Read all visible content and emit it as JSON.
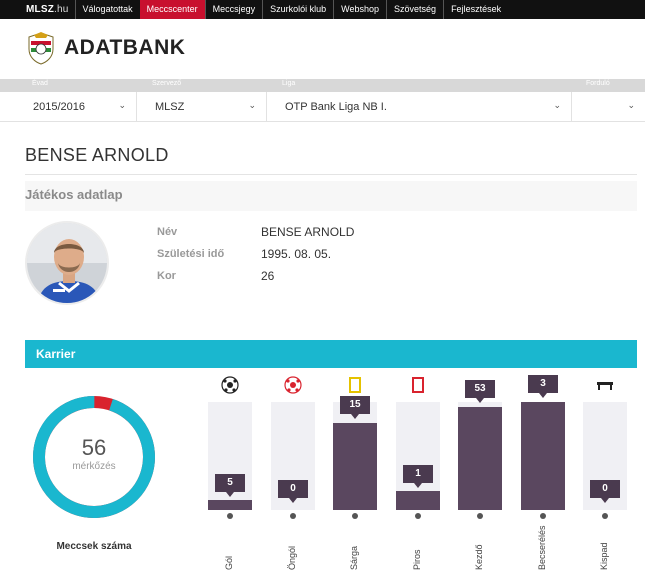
{
  "nav": {
    "logo": "MLSZ",
    "logo_sub": ".hu",
    "items": [
      "Válogatottak",
      "Meccscenter",
      "Meccsjegy",
      "Szurkolói klub",
      "Webshop",
      "Szövetség",
      "Fejlesztések"
    ],
    "active_index": 1
  },
  "brand": {
    "title": "ADATBANK",
    "crest_icon": "mlsz-crest-icon"
  },
  "filters": {
    "labels": [
      "Évad",
      "Szervező",
      "Liga",
      "Forduló"
    ],
    "season": "2015/2016",
    "organizer": "MLSZ",
    "league": "OTP Bank Liga NB I.",
    "round": ""
  },
  "player": {
    "heading": "BENSE ARNOLD",
    "section_title": "Játékos adatlap",
    "fields": [
      {
        "label": "Név",
        "value": "BENSE ARNOLD"
      },
      {
        "label": "Születési idő",
        "value": "1995. 08. 05."
      },
      {
        "label": "Kor",
        "value": "26"
      }
    ]
  },
  "career": {
    "title": "Karrier",
    "matches": {
      "value": "56",
      "unit": "mérkőzés",
      "caption": "Meccsek száma",
      "ring_fraction": 0.95
    },
    "stats": [
      {
        "label": "Gól",
        "value": "5",
        "fraction": 0.09,
        "icon": "soccer-ball-icon"
      },
      {
        "label": "Öngól",
        "value": "0",
        "fraction": 0.0,
        "icon": "own-goal-ball-icon"
      },
      {
        "label": "Sárga",
        "value": "15",
        "fraction": 0.81,
        "icon": "yellow-card-icon"
      },
      {
        "label": "Piros",
        "value": "1",
        "fraction": 0.18,
        "icon": "red-card-icon"
      },
      {
        "label": "Kezdő",
        "value": "53",
        "fraction": 0.95,
        "icon": "starting-lineup-icon"
      },
      {
        "label": "Becserélés",
        "value": "3",
        "fraction": 1.0,
        "icon": "substitution-icon"
      },
      {
        "label": "Kispad",
        "value": "0",
        "fraction": 0.0,
        "icon": "bench-icon"
      }
    ]
  },
  "colors": {
    "accent": "#1ab7cf",
    "nav_active": "#c8102e",
    "bar": "#5a475f",
    "donut_gap": "#d9232e"
  }
}
